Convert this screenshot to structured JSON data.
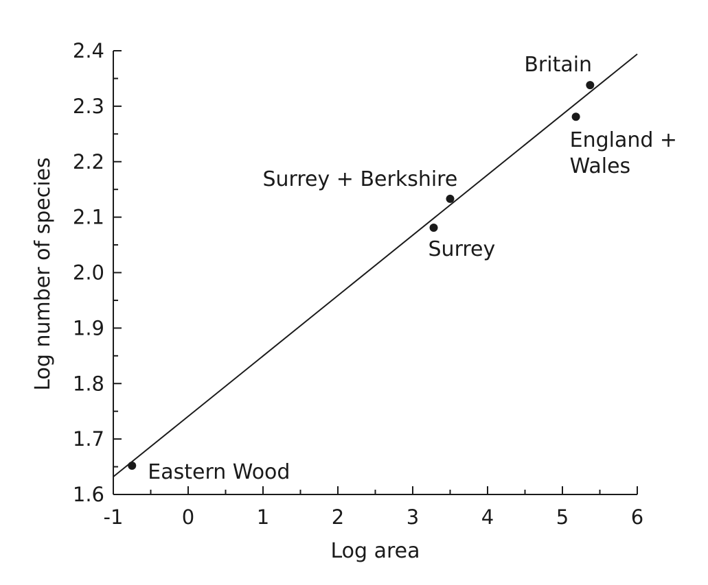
{
  "chart_data": {
    "type": "scatter",
    "title": "",
    "xlabel": "Log area",
    "ylabel": "Log number of species",
    "xlim": [
      -1,
      6
    ],
    "ylim": [
      1.6,
      2.4
    ],
    "x_ticks": [
      "-1",
      "0",
      "1",
      "2",
      "3",
      "4",
      "5",
      "6"
    ],
    "y_ticks": [
      "1.6",
      "1.7",
      "1.8",
      "1.9",
      "2.0",
      "2.1",
      "2.2",
      "2.3",
      "2.4"
    ],
    "grid": false,
    "points": [
      {
        "label": "Eastern Wood",
        "x": -0.75,
        "y": 1.652
      },
      {
        "label": "Surrey",
        "x": 3.28,
        "y": 2.081
      },
      {
        "label": "Surrey + Berkshire",
        "x": 3.5,
        "y": 2.133
      },
      {
        "label": "England + Wales",
        "x": 5.18,
        "y": 2.281
      },
      {
        "label": "Britain",
        "x": 5.37,
        "y": 2.338
      }
    ],
    "fit_line": {
      "x": [
        -1,
        6
      ],
      "y": [
        1.632,
        2.394
      ]
    }
  }
}
